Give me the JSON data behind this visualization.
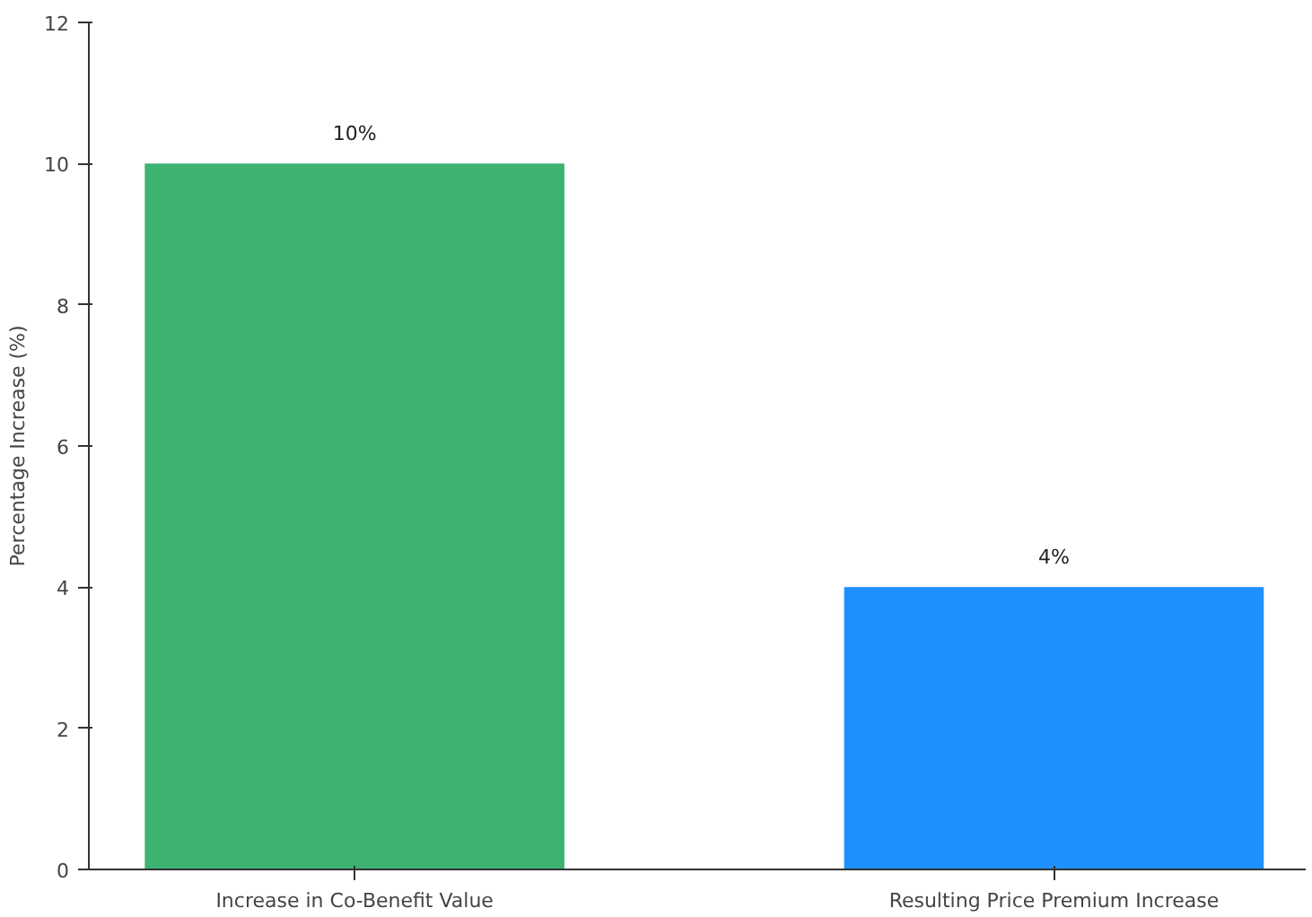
{
  "chart_data": {
    "type": "bar",
    "ylabel": "Percentage Increase (%)",
    "categories": [
      "Increase in Co-Benefit Value",
      "Resulting Price Premium Increase"
    ],
    "values": [
      10,
      4
    ],
    "colors": [
      "#3cb371",
      "#1e90ff"
    ],
    "value_labels": [
      "10%",
      "4%"
    ],
    "ylim": [
      0,
      12
    ],
    "yticks": [
      0,
      2,
      4,
      6,
      8,
      10,
      12
    ],
    "grid": false
  }
}
